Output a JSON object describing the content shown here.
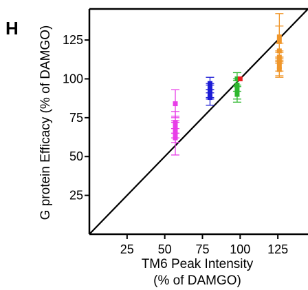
{
  "panel_label": "H",
  "chart_data": {
    "type": "scatter",
    "xlabel": [
      "TM6 Peak Intensity",
      "(% of DAMGO)"
    ],
    "ylabel": "G protein Efficacy (% of DAMGO)",
    "xlim": [
      0,
      145
    ],
    "ylim": [
      0,
      145
    ],
    "xticks": [
      25,
      50,
      75,
      100,
      125
    ],
    "yticks": [
      25,
      50,
      75,
      100,
      125
    ],
    "grid": false,
    "legend": "none",
    "identity_line": {
      "from": [
        0,
        0
      ],
      "to": [
        145,
        145
      ],
      "color": "#000000"
    },
    "groups": [
      {
        "color": "#e83ee8",
        "x": 57,
        "points": [
          {
            "y": 84,
            "err": 9
          },
          {
            "y": 72,
            "err": 4
          },
          {
            "y": 69,
            "err": 4
          },
          {
            "y": 67,
            "err": 5
          },
          {
            "y": 65,
            "err": 14
          },
          {
            "y": 62,
            "err": 3
          }
        ]
      },
      {
        "color": "#1c1cd6",
        "x": 80,
        "points": [
          {
            "y": 97,
            "err": 4
          },
          {
            "y": 94,
            "err": 3
          },
          {
            "y": 92,
            "err": 4
          },
          {
            "y": 90,
            "err": 3
          },
          {
            "y": 88,
            "err": 5
          }
        ]
      },
      {
        "color": "#2eb82e",
        "x": 98,
        "points": [
          {
            "y": 100,
            "err": 4
          },
          {
            "y": 96,
            "err": 4
          },
          {
            "y": 93,
            "err": 6
          },
          {
            "y": 90,
            "err": 5
          }
        ]
      },
      {
        "color": "#e82020",
        "x": 100,
        "points": [
          {
            "y": 100,
            "err": 0
          }
        ]
      },
      {
        "color": "#f0962a",
        "x": 126,
        "points": [
          {
            "y": 127,
            "err": 15
          },
          {
            "y": 124,
            "err": 10
          },
          {
            "y": 118,
            "err": 5
          },
          {
            "y": 114,
            "err": 4
          },
          {
            "y": 111,
            "err": 6
          },
          {
            "y": 108,
            "err": 6
          },
          {
            "y": 106,
            "err": 5
          }
        ]
      }
    ]
  }
}
